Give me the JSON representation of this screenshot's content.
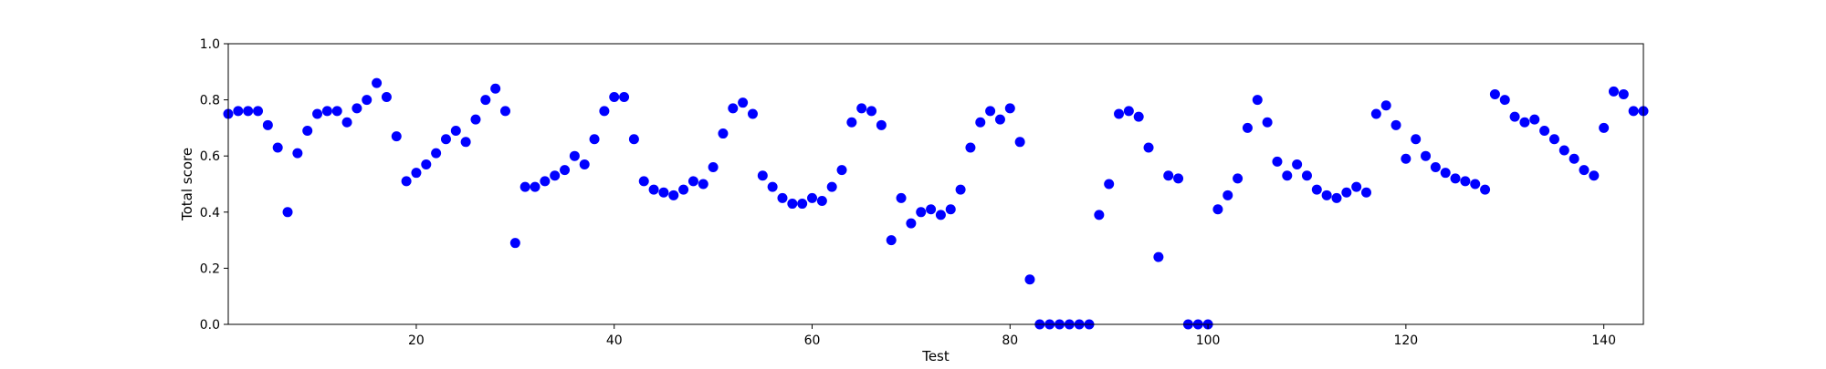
{
  "chart_data": {
    "type": "scatter",
    "title": "",
    "xlabel": "Test",
    "ylabel": "Total score",
    "xlim": [
      1,
      144
    ],
    "ylim": [
      0,
      1
    ],
    "x_ticks": [
      20,
      40,
      60,
      80,
      100,
      120,
      140
    ],
    "y_ticks": [
      0.0,
      0.2,
      0.4,
      0.6,
      0.8,
      1.0
    ],
    "x_tick_labels": [
      "20",
      "40",
      "60",
      "80",
      "100",
      "120",
      "140"
    ],
    "y_tick_labels": [
      "0.0",
      "0.2",
      "0.4",
      "0.6",
      "0.8",
      "1.0"
    ],
    "grid": false,
    "marker_color": "#0000ff",
    "series": [
      {
        "x": [
          1,
          2,
          3,
          4,
          5,
          6,
          7,
          8,
          9,
          10,
          11,
          12,
          13,
          14,
          15,
          16,
          17,
          18,
          19,
          20,
          21,
          22,
          23,
          24,
          25,
          26,
          27,
          28,
          29,
          30,
          31,
          32,
          33,
          34,
          35,
          36,
          37,
          38,
          39,
          40,
          41,
          42,
          43,
          44,
          45,
          46,
          47,
          48,
          49,
          50,
          51,
          52,
          53,
          54,
          55,
          56,
          57,
          58,
          59,
          60,
          61,
          62,
          63,
          64,
          65,
          66,
          67,
          68,
          69,
          70,
          71,
          72,
          73,
          74,
          75,
          76,
          77,
          78,
          79,
          80,
          81,
          82,
          83,
          84,
          85,
          86,
          87,
          88,
          89,
          90,
          91,
          92,
          93,
          94,
          95,
          96,
          97,
          98,
          99,
          100,
          101,
          102,
          103,
          104,
          105,
          106,
          107,
          108,
          109,
          110,
          111,
          112,
          113,
          114,
          115,
          116,
          117,
          118,
          119,
          120,
          121,
          122,
          123,
          124,
          125,
          126,
          127,
          128,
          129,
          130,
          131,
          132,
          133,
          134,
          135,
          136,
          137,
          138,
          139,
          140,
          141,
          142,
          143,
          144
        ],
        "y": [
          0.75,
          0.76,
          0.76,
          0.76,
          0.71,
          0.63,
          0.4,
          0.61,
          0.69,
          0.75,
          0.76,
          0.76,
          0.72,
          0.77,
          0.8,
          0.86,
          0.81,
          0.67,
          0.51,
          0.54,
          0.57,
          0.61,
          0.66,
          0.69,
          0.65,
          0.73,
          0.8,
          0.84,
          0.76,
          0.29,
          0.49,
          0.49,
          0.51,
          0.53,
          0.55,
          0.6,
          0.57,
          0.66,
          0.76,
          0.81,
          0.81,
          0.66,
          0.51,
          0.48,
          0.47,
          0.46,
          0.48,
          0.51,
          0.5,
          0.56,
          0.68,
          0.77,
          0.79,
          0.75,
          0.53,
          0.49,
          0.45,
          0.43,
          0.43,
          0.45,
          0.44,
          0.49,
          0.55,
          0.72,
          0.77,
          0.76,
          0.71,
          0.3,
          0.45,
          0.36,
          0.4,
          0.41,
          0.39,
          0.41,
          0.48,
          0.63,
          0.72,
          0.76,
          0.73,
          0.77,
          0.65,
          0.16,
          0.0,
          0.0,
          0.0,
          0.0,
          0.0,
          0.0,
          0.39,
          0.5,
          0.75,
          0.76,
          0.74,
          0.63,
          0.24,
          0.53,
          0.52,
          0.0,
          0.0,
          0.0,
          0.41,
          0.46,
          0.52,
          0.7,
          0.8,
          0.72,
          0.58,
          0.53,
          0.57,
          0.53,
          0.48,
          0.46,
          0.45,
          0.47,
          0.49,
          0.47,
          0.75,
          0.78,
          0.71,
          0.59,
          0.66,
          0.6,
          0.56,
          0.54,
          0.52,
          0.51,
          0.5,
          0.48,
          0.82,
          0.8,
          0.74,
          0.72,
          0.73,
          0.69,
          0.66,
          0.62,
          0.59,
          0.55,
          0.53,
          0.7,
          0.83,
          0.82,
          0.76,
          0.76
        ]
      }
    ]
  }
}
